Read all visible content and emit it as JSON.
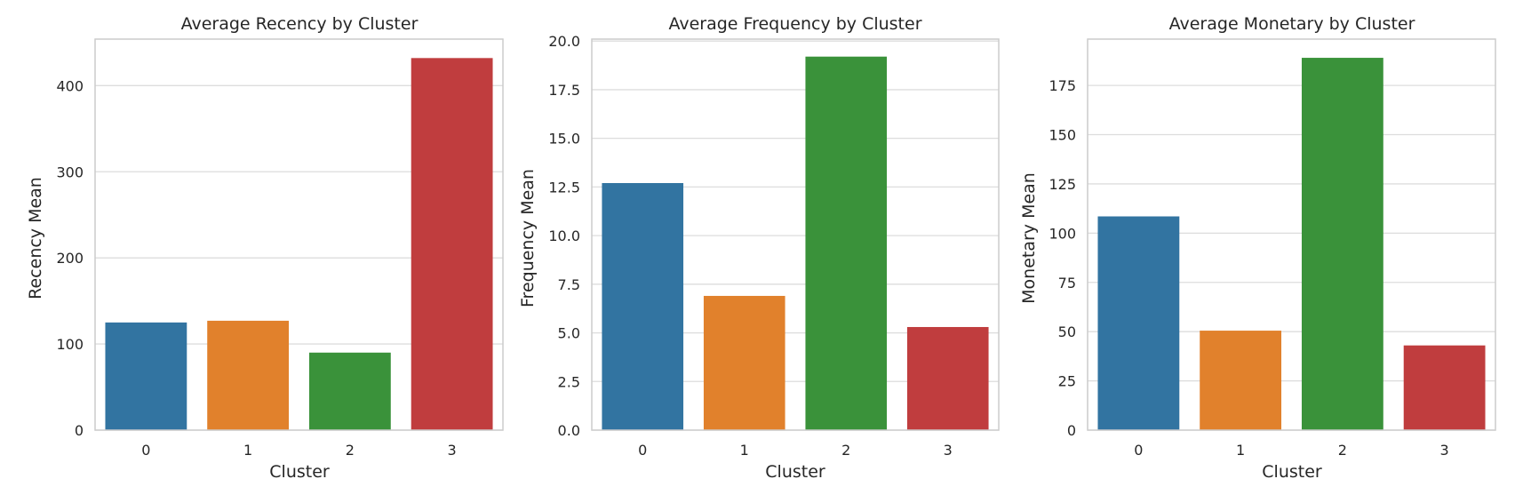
{
  "chart_data": [
    {
      "type": "bar",
      "title": "Average Recency by Cluster",
      "xlabel": "Cluster",
      "ylabel": "Recency Mean",
      "categories": [
        "0",
        "1",
        "2",
        "3"
      ],
      "values": [
        125,
        127,
        90,
        432
      ],
      "ylim": [
        0,
        454
      ],
      "yticks": [
        0,
        100,
        200,
        300,
        400
      ],
      "ytick_labels": [
        "0",
        "100",
        "200",
        "300",
        "400"
      ],
      "colors": [
        "#3274a1",
        "#e1812c",
        "#3a923a",
        "#c03d3e"
      ],
      "grid": true,
      "legend": "none"
    },
    {
      "type": "bar",
      "title": "Average Frequency by Cluster",
      "xlabel": "Cluster",
      "ylabel": "Frequency Mean",
      "categories": [
        "0",
        "1",
        "2",
        "3"
      ],
      "values": [
        12.7,
        6.9,
        19.2,
        5.3
      ],
      "ylim": [
        0,
        20.1
      ],
      "yticks": [
        0,
        2.5,
        5,
        7.5,
        10,
        12.5,
        15,
        17.5,
        20
      ],
      "ytick_labels": [
        "0.0",
        "2.5",
        "5.0",
        "7.5",
        "10.0",
        "12.5",
        "15.0",
        "17.5",
        "20.0"
      ],
      "colors": [
        "#3274a1",
        "#e1812c",
        "#3a923a",
        "#c03d3e"
      ],
      "grid": true,
      "legend": "none"
    },
    {
      "type": "bar",
      "title": "Average Monetary by Cluster",
      "xlabel": "Cluster",
      "ylabel": "Monetary Mean",
      "categories": [
        "0",
        "1",
        "2",
        "3"
      ],
      "values": [
        108.5,
        50.5,
        189,
        43
      ],
      "ylim": [
        0,
        198.5
      ],
      "yticks": [
        0,
        25,
        50,
        75,
        100,
        125,
        150,
        175
      ],
      "ytick_labels": [
        "0",
        "25",
        "50",
        "75",
        "100",
        "125",
        "150",
        "175"
      ],
      "colors": [
        "#3274a1",
        "#e1812c",
        "#3a923a",
        "#c03d3e"
      ],
      "grid": true,
      "legend": "none"
    }
  ]
}
